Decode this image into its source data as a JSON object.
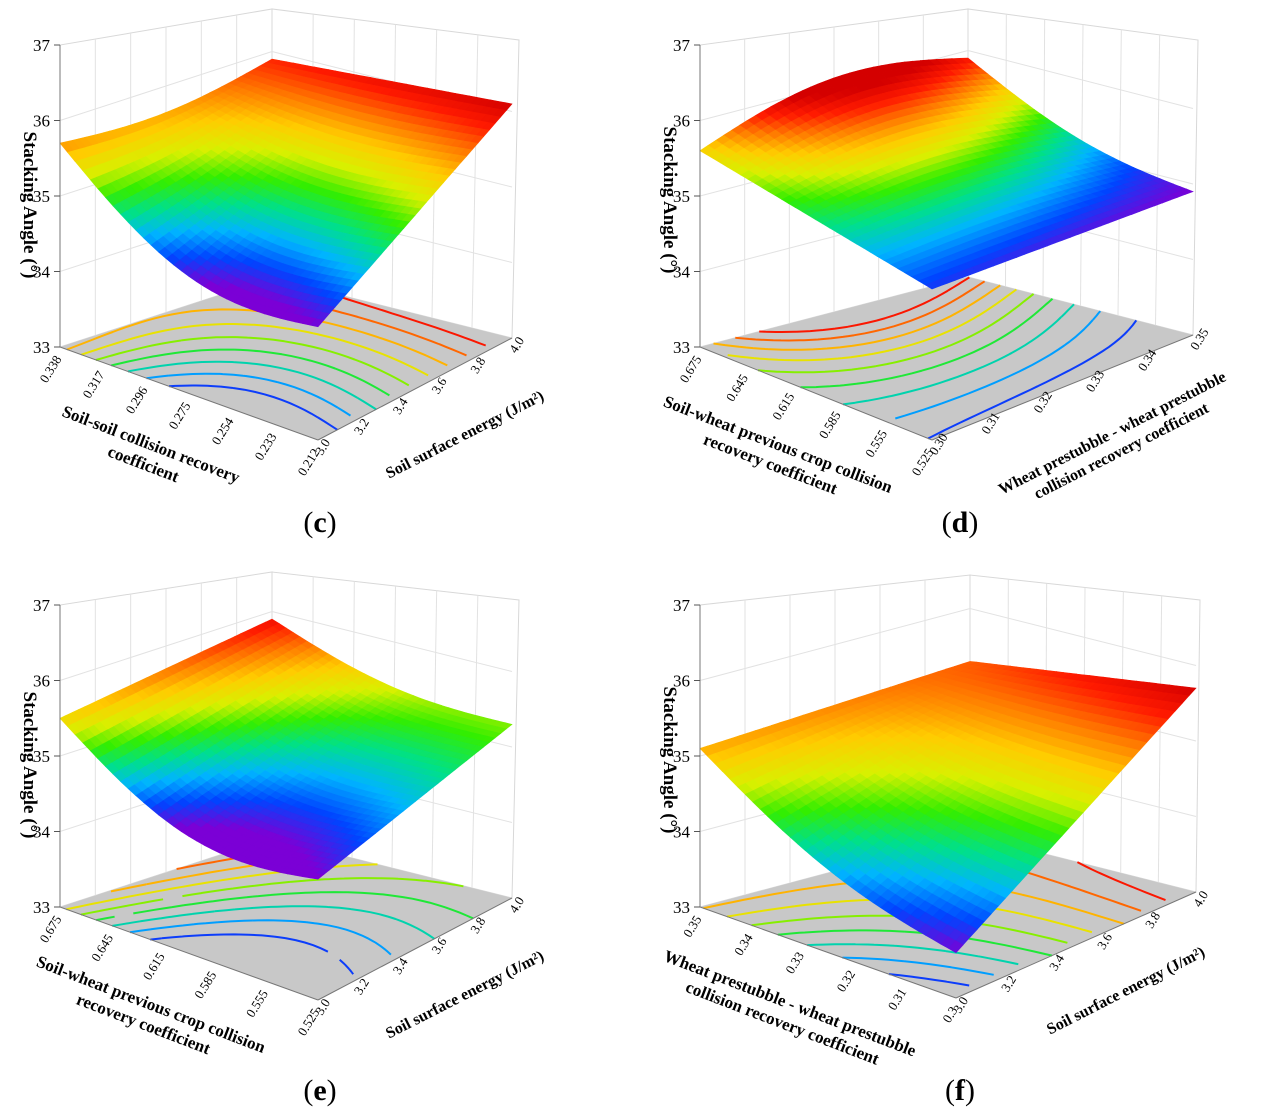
{
  "chart_data": [
    {
      "type": "surface",
      "panel": "c",
      "title": "",
      "zlabel": "Stacking Angle (°)",
      "zlim": [
        33,
        37
      ],
      "zticks": [
        "33",
        "34",
        "35",
        "36",
        "37"
      ],
      "xlabel": "Soil-soil collision recovery coefficient",
      "xticks": [
        "0.338",
        "0.317",
        "0.296",
        "0.275",
        "0.254",
        "0.233",
        "0.212"
      ],
      "ylabel": "Soil surface energy (J/m²)",
      "yticks": [
        "3.0",
        "3.2",
        "3.4",
        "3.6",
        "3.8",
        "4.0"
      ],
      "corners": {
        "x_hi_y_lo": 35.7,
        "x_lo_y_lo": 34.5,
        "x_lo_y_hi": 36.1,
        "x_hi_y_hi": 35.9
      },
      "z_min": 34.5,
      "z_max": 36.1
    },
    {
      "type": "surface",
      "panel": "d",
      "title": "",
      "zlabel": "Stacking Angle (°)",
      "zlim": [
        33,
        37
      ],
      "zticks": [
        "33",
        "34",
        "35",
        "36",
        "37"
      ],
      "xlabel": "Soil-wheat previous crop collision recovery coefficient",
      "xticks": [
        "0.675",
        "0.645",
        "0.615",
        "0.585",
        "0.555",
        "0.525"
      ],
      "ylabel": "Wheat prestubble - wheat prestubble collision recovery coefficient",
      "yticks": [
        "0.30",
        "0.31",
        "0.32",
        "0.33",
        "0.34",
        "0.35"
      ],
      "corners": {
        "x_hi_y_lo": 35.6,
        "x_lo_y_lo": 35.0,
        "x_lo_y_hi": 34.9,
        "x_hi_y_hi": 35.9
      },
      "z_min": 34.9,
      "z_max": 36.0
    },
    {
      "type": "surface",
      "panel": "e",
      "title": "",
      "zlabel": "Stacking Angle (°)",
      "zlim": [
        33,
        37
      ],
      "zticks": [
        "33",
        "34",
        "35",
        "36",
        "37"
      ],
      "xlabel": "Soil-wheat previous crop collision recovery coefficient",
      "xticks": [
        "0.675",
        "0.645",
        "0.615",
        "0.585",
        "0.555",
        "0.525"
      ],
      "ylabel": "Soil surface energy (J/m²)",
      "yticks": [
        "3.0",
        "3.2",
        "3.4",
        "3.6",
        "3.8",
        "4.0"
      ],
      "corners": {
        "x_hi_y_lo": 35.5,
        "x_lo_y_lo": 34.6,
        "x_lo_y_hi": 35.3,
        "x_hi_y_hi": 35.9
      },
      "z_min": 34.6,
      "z_max": 36.0
    },
    {
      "type": "surface",
      "panel": "f",
      "title": "",
      "zlabel": "Stacking Angle (°)",
      "zlim": [
        33,
        37
      ],
      "zticks": [
        "33",
        "34",
        "35",
        "36",
        "37"
      ],
      "xlabel": "Wheat prestubble - wheat prestubble collision recovery coefficient",
      "xticks": [
        "0.35",
        "0.34",
        "0.33",
        "0.32",
        "0.31",
        "0.3"
      ],
      "ylabel": "Soil surface energy (J/m²)",
      "yticks": [
        "3.0",
        "3.2",
        "3.4",
        "3.6",
        "3.8",
        "4.0"
      ],
      "corners": {
        "x_hi_y_lo": 35.1,
        "x_lo_y_lo": 33.6,
        "x_lo_y_hi": 35.7,
        "x_hi_y_hi": 35.3
      },
      "z_min": 33.6,
      "z_max": 35.7
    }
  ],
  "captions": {
    "c": "c",
    "d": "d",
    "e": "e",
    "f": "f"
  },
  "palette": [
    "#7b00d6",
    "#0044ff",
    "#00b4ff",
    "#00e08a",
    "#33ee00",
    "#d8f000",
    "#ffcc00",
    "#ff7a00",
    "#ff1a00",
    "#d40000"
  ],
  "floor_color": "#c8c8c8"
}
